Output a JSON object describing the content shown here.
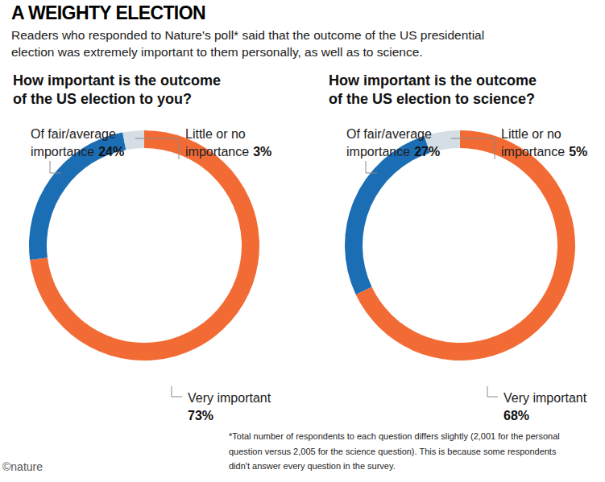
{
  "title": "A WEIGHTY ELECTION",
  "subtitle": [
    "Readers who responded to Nature's poll* said that the outcome of the US presidential",
    "election was extremely important to them personally, as well as to science."
  ],
  "note": [
    "*Total number of respondents to each question differs slightly (2,001 for the personal",
    "question versus 2,005 for the science question). This is because some respondents",
    "didn't answer every question in the survey."
  ],
  "credit": "©nature",
  "chart_data": [
    {
      "type": "donut",
      "title": [
        "How important is the outcome",
        "of the US election to you?"
      ],
      "categories": [
        "Very important",
        "Of fair/average importance",
        "Little or no importance"
      ],
      "values": [
        73,
        24,
        3
      ],
      "value_labels": [
        "73%",
        "24%",
        "3%"
      ],
      "colors": [
        "#f26b35",
        "#1b6db4",
        "#d5dde5"
      ],
      "data_labels": true
    },
    {
      "type": "donut",
      "title": [
        "How important is the outcome",
        "of the US election to science?"
      ],
      "categories": [
        "Very important",
        "Of fair/average importance",
        "Little or no importance"
      ],
      "values": [
        68,
        27,
        5
      ],
      "value_labels": [
        "68%",
        "27%",
        "5%"
      ],
      "colors": [
        "#f26b35",
        "#1b6db4",
        "#d5dde5"
      ],
      "data_labels": true
    }
  ]
}
